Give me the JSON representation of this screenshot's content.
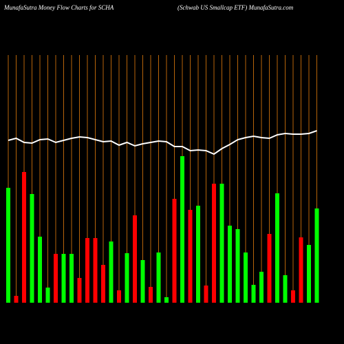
{
  "chart_data": {
    "type": "bar",
    "title": "MunafaSutra  Money Flow  Charts for SCHA",
    "subtitle": "(Schwab US Smallcap ETF) MunafaSutra.com",
    "ylim": [
      0,
      360
    ],
    "gridline_color": "#b8650a",
    "series": [
      {
        "name": "Money flow",
        "type": "bar",
        "values": [
          167,
          10,
          190,
          158,
          96,
          22,
          71,
          71,
          71,
          36,
          94,
          94,
          55,
          89,
          18,
          72,
          127,
          62,
          23,
          73,
          8,
          151,
          213,
          135,
          141,
          25,
          173,
          173,
          112,
          107,
          73,
          26,
          45,
          100,
          159,
          40,
          18,
          95,
          84,
          137
        ],
        "colors": [
          "#00ff00",
          "#ff0000",
          "#ff0000",
          "#00ff00",
          "#00ff00",
          "#00ff00",
          "#ff0000",
          "#00ff00",
          "#00ff00",
          "#ff0000",
          "#ff0000",
          "#ff0000",
          "#ff0000",
          "#00ff00",
          "#ff0000",
          "#00ff00",
          "#ff0000",
          "#00ff00",
          "#ff0000",
          "#00ff00",
          "#00ff00",
          "#ff0000",
          "#00ff00",
          "#ff0000",
          "#00ff00",
          "#ff0000",
          "#ff0000",
          "#00ff00",
          "#00ff00",
          "#00ff00",
          "#00ff00",
          "#00ff00",
          "#00ff00",
          "#ff0000",
          "#00ff00",
          "#00ff00",
          "#ff0000",
          "#ff0000",
          "#00ff00",
          "#00ff00"
        ]
      },
      {
        "name": "Price",
        "type": "line",
        "color": "#ffffff",
        "values": [
          236,
          239,
          233,
          232,
          237,
          238,
          233,
          236,
          239,
          241,
          240,
          237,
          234,
          235,
          229,
          233,
          228,
          231,
          233,
          235,
          234,
          227,
          227,
          221,
          222,
          221,
          216,
          224,
          230,
          237,
          240,
          242,
          240,
          239,
          244,
          246,
          245,
          245,
          246,
          250
        ]
      }
    ]
  }
}
